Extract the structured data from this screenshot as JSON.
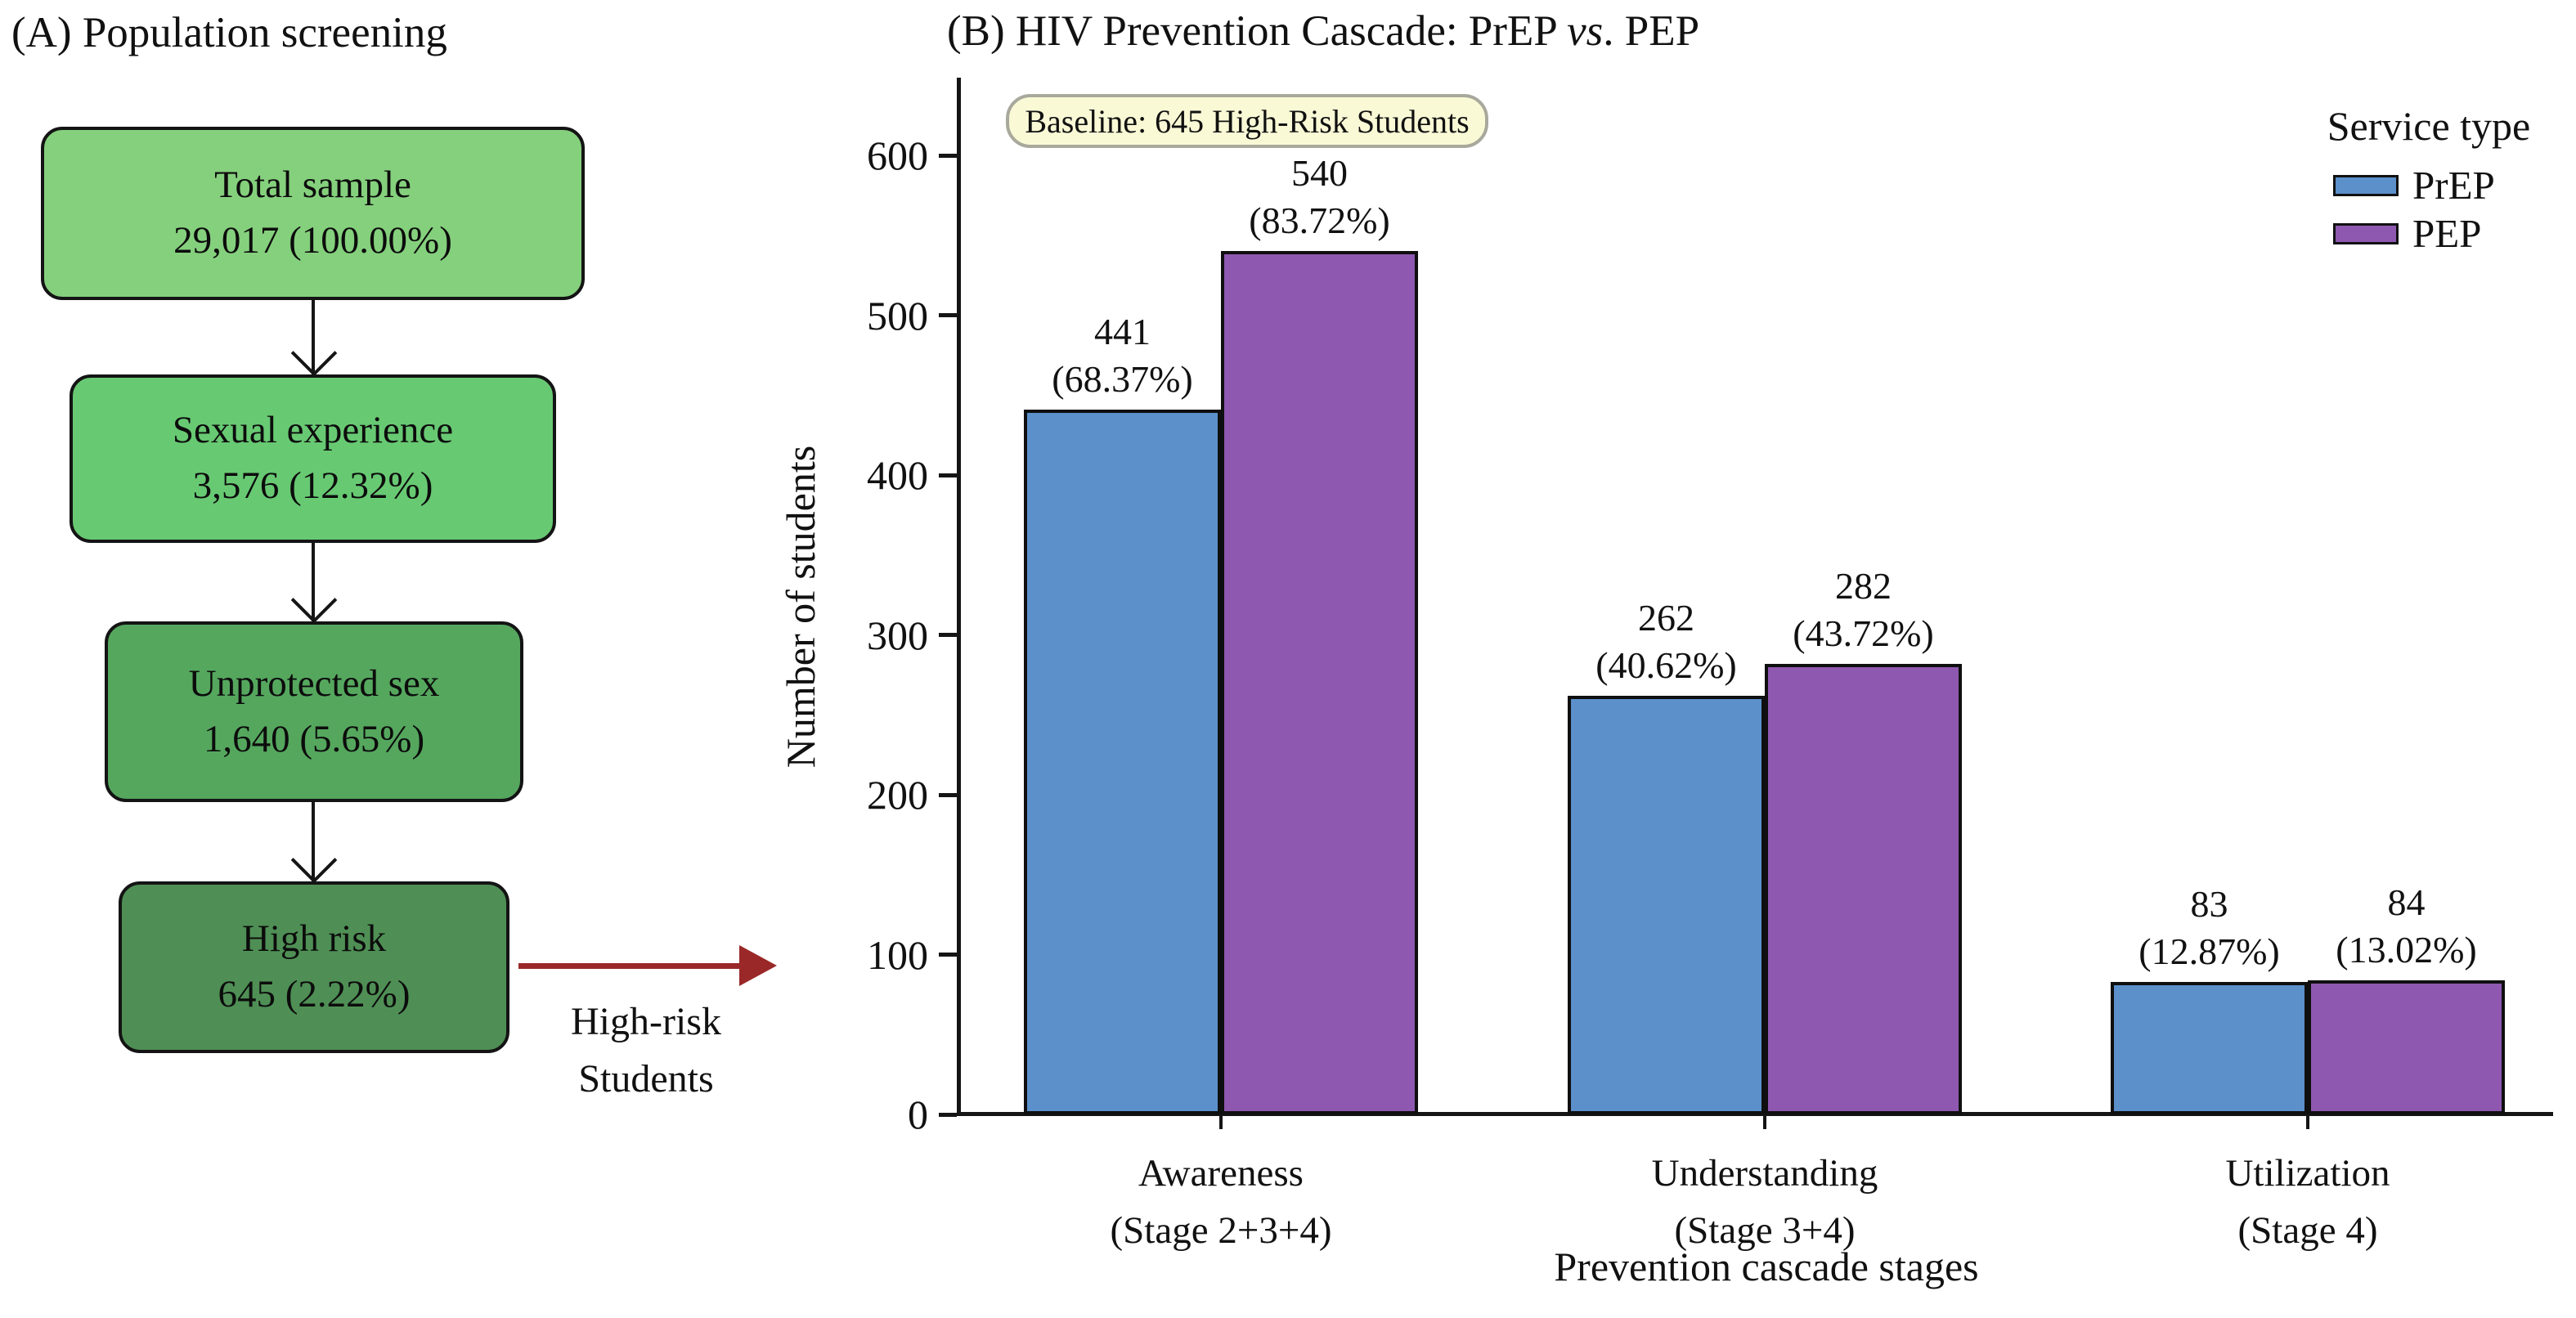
{
  "panelA": {
    "title": "(A) Population screening",
    "steps": [
      {
        "label": "Total sample",
        "value": "29,017 (100.00%)",
        "color": "#85d07d"
      },
      {
        "label": "Sexual experience",
        "value": "3,576 (12.32%)",
        "color": "#68c973"
      },
      {
        "label": "Unprotected sex",
        "value": "1,640 (5.65%)",
        "color": "#55a75e"
      },
      {
        "label": "High risk",
        "value": "645 (2.22%)",
        "color": "#4f8f55"
      }
    ],
    "highlight": {
      "arrow_color": "#9a2828",
      "label_line1": "High-risk",
      "label_line2": "Students"
    }
  },
  "panelB": {
    "title_prefix": "(B) HIV Prevention Cascade: PrEP ",
    "title_vs": "vs",
    "title_suffix": ". PEP",
    "badge": "Baseline: 645 High-Risk Students",
    "badge_bg": "#f9f9d6"
  },
  "chart_data": {
    "type": "bar",
    "title": "(B) HIV Prevention Cascade: PrEP vs. PEP",
    "categories_lines": [
      [
        "Awareness",
        "(Stage 2+3+4)"
      ],
      [
        "Understanding",
        "(Stage 3+4)"
      ],
      [
        "Utilization",
        "(Stage 4)"
      ]
    ],
    "series": [
      {
        "name": "PrEP",
        "color": "#5b90cb",
        "values": [
          441,
          262,
          83
        ],
        "pct_labels": [
          "(68.37%)",
          "(40.62%)",
          "(12.87%)"
        ]
      },
      {
        "name": "PEP",
        "color": "#8f58b0",
        "values": [
          540,
          282,
          84
        ],
        "pct_labels": [
          "(83.72%)",
          "(43.72%)",
          "(13.02%)"
        ]
      }
    ],
    "xlabel": "Prevention cascade stages",
    "ylabel": "Number of students",
    "yticks": [
      0,
      100,
      200,
      300,
      400,
      500,
      600
    ],
    "ylim": [
      0,
      640
    ],
    "grid": false,
    "legend": {
      "title": "Service type",
      "position": "upper right"
    },
    "annotation": "Baseline: 645 High-Risk Students"
  }
}
